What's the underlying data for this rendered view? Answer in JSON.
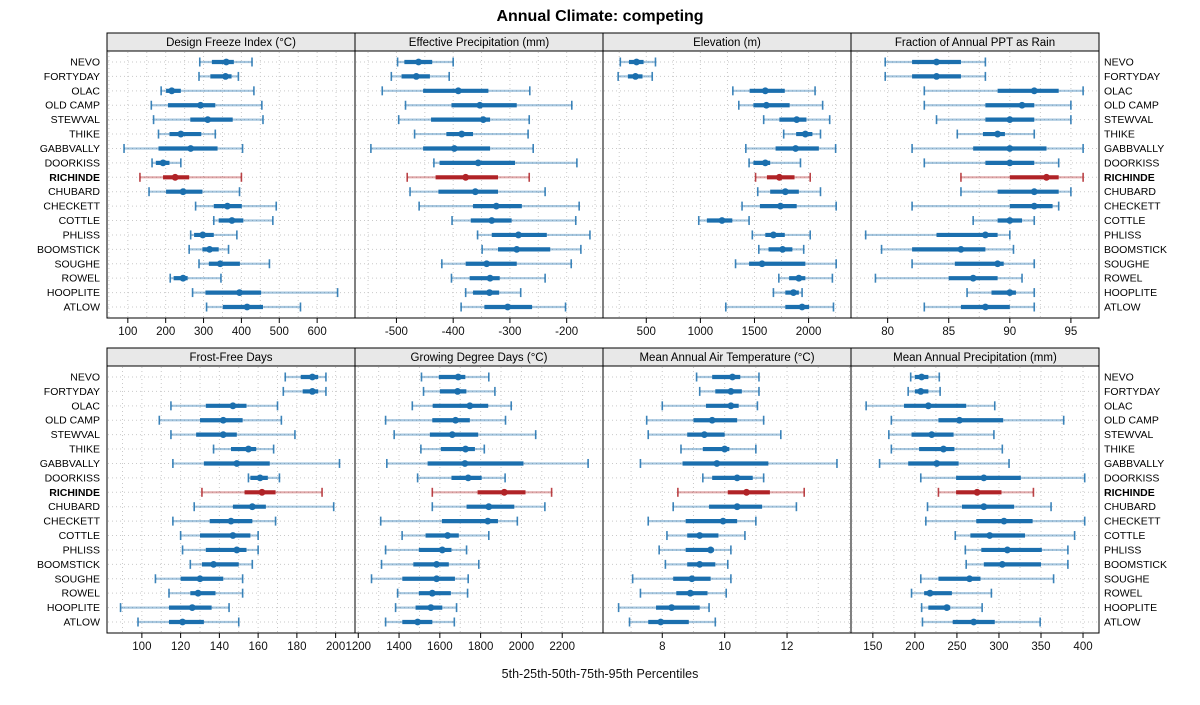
{
  "title": "Annual Climate: competing",
  "caption": "5th-25th-50th-75th-95th Percentiles",
  "colors": {
    "series": "#1b6fae",
    "highlight": "#b02327",
    "grid": "#c9c9c9",
    "header_bg": "#e8e8e8",
    "border": "#000000",
    "axis_text": "#111111"
  },
  "sites": [
    "NEVO",
    "FORTYDAY",
    "OLAC",
    "OLD CAMP",
    "STEWVAL",
    "THIKE",
    "GABBVALLY",
    "DOORKISS",
    "RICHINDE",
    "CHUBARD",
    "CHECKETT",
    "COTTLE",
    "PHLISS",
    "BOOMSTICK",
    "SOUGHE",
    "ROWEL",
    "HOOPLITE",
    "ATLOW"
  ],
  "highlight_site": "RICHINDE",
  "chart_data": {
    "type": "dotplot-percentiles",
    "percentile_labels": [
      "5th",
      "25th",
      "50th",
      "75th",
      "95th"
    ],
    "legend_position": "none",
    "grid": "dotted",
    "panels": [
      {
        "title": "Design Freeze Index (°C)",
        "row": 0,
        "col": 0,
        "domain": [
          45,
          700
        ],
        "ticks": [
          100,
          200,
          300,
          400,
          500,
          600
        ],
        "grid_step": 50,
        "series": [
          [
            290,
            322,
            360,
            380,
            428
          ],
          [
            288,
            318,
            358,
            374,
            392
          ],
          [
            188,
            201,
            216,
            240,
            433
          ],
          [
            162,
            206,
            292,
            331,
            454
          ],
          [
            168,
            265,
            311,
            377,
            457
          ],
          [
            181,
            210,
            240,
            294,
            331
          ],
          [
            90,
            181,
            266,
            337,
            403
          ],
          [
            164,
            174,
            193,
            210,
            240
          ],
          [
            132,
            193,
            225,
            262,
            400
          ],
          [
            156,
            201,
            246,
            297,
            395
          ],
          [
            279,
            327,
            363,
            401,
            492
          ],
          [
            327,
            340,
            375,
            405,
            483
          ],
          [
            266,
            275,
            298,
            327,
            388
          ],
          [
            262,
            297,
            316,
            340,
            366
          ],
          [
            288,
            314,
            344,
            396,
            474
          ],
          [
            212,
            221,
            246,
            258,
            346
          ],
          [
            271,
            305,
            395,
            452,
            654
          ],
          [
            308,
            351,
            415,
            457,
            556
          ]
        ]
      },
      {
        "title": "Effective Precipitation (mm)",
        "row": 0,
        "col": 1,
        "domain": [
          -573,
          -136
        ],
        "ticks": [
          -500,
          -400,
          -300,
          -200
        ],
        "grid_step": 50,
        "series": [
          [
            -498,
            -486,
            -461,
            -437,
            -400
          ],
          [
            -509,
            -491,
            -465,
            -441,
            -407
          ],
          [
            -525,
            -453,
            -391,
            -338,
            -265
          ],
          [
            -484,
            -403,
            -353,
            -288,
            -191
          ],
          [
            -496,
            -439,
            -347,
            -335,
            -266
          ],
          [
            -468,
            -412,
            -385,
            -365,
            -268
          ],
          [
            -545,
            -453,
            -398,
            -335,
            -259
          ],
          [
            -434,
            -424,
            -356,
            -291,
            -182
          ],
          [
            -481,
            -431,
            -378,
            -321,
            -266
          ],
          [
            -476,
            -426,
            -361,
            -321,
            -238
          ],
          [
            -460,
            -365,
            -324,
            -279,
            -178
          ],
          [
            -402,
            -369,
            -332,
            -297,
            -184
          ],
          [
            -357,
            -332,
            -285,
            -235,
            -159
          ],
          [
            -349,
            -321,
            -288,
            -229,
            -175
          ],
          [
            -420,
            -378,
            -341,
            -288,
            -192
          ],
          [
            -403,
            -371,
            -335,
            -318,
            -238
          ],
          [
            -378,
            -365,
            -336,
            -319,
            -281
          ],
          [
            -386,
            -345,
            -304,
            -261,
            -202
          ]
        ]
      },
      {
        "title": "Elevation (m)",
        "row": 0,
        "col": 2,
        "domain": [
          100,
          2392
        ],
        "ticks": [
          500,
          1000,
          1500,
          2000
        ],
        "grid_step": 250,
        "series": [
          [
            260,
            340,
            410,
            475,
            585
          ],
          [
            240,
            330,
            400,
            465,
            555
          ],
          [
            1300,
            1455,
            1600,
            1780,
            2060
          ],
          [
            1355,
            1490,
            1610,
            1825,
            2130
          ],
          [
            1585,
            1730,
            1890,
            1980,
            2195
          ],
          [
            1770,
            1885,
            1970,
            2035,
            2110
          ],
          [
            1420,
            1695,
            1880,
            2095,
            2250
          ],
          [
            1450,
            1490,
            1600,
            1645,
            1925
          ],
          [
            1510,
            1615,
            1730,
            1870,
            2015
          ],
          [
            1530,
            1645,
            1785,
            1910,
            2110
          ],
          [
            1385,
            1550,
            1740,
            1890,
            2255
          ],
          [
            985,
            1060,
            1200,
            1295,
            1450
          ],
          [
            1480,
            1600,
            1675,
            1780,
            2015
          ],
          [
            1540,
            1630,
            1760,
            1850,
            1955
          ],
          [
            1325,
            1450,
            1570,
            1970,
            2255
          ],
          [
            1725,
            1820,
            1910,
            1970,
            2220
          ],
          [
            1675,
            1785,
            1860,
            1910,
            1940
          ],
          [
            1235,
            1785,
            1940,
            2005,
            2230
          ]
        ]
      },
      {
        "title": "Fraction of Annual PPT as Rain",
        "row": 0,
        "col": 3,
        "domain": [
          77,
          97.3
        ],
        "ticks": [
          80,
          85,
          90,
          95
        ],
        "grid_step": 2.5,
        "series": [
          [
            79.8,
            82,
            84,
            86,
            88
          ],
          [
            79.8,
            82,
            84,
            86,
            88
          ],
          [
            83,
            89,
            92,
            94,
            96
          ],
          [
            83,
            88,
            91,
            92,
            95
          ],
          [
            84,
            88,
            90,
            92,
            95
          ],
          [
            85.7,
            87.8,
            89,
            89.6,
            92
          ],
          [
            82,
            87,
            90,
            93,
            96
          ],
          [
            83,
            88,
            90,
            92,
            94
          ],
          [
            86,
            90,
            93,
            94,
            96
          ],
          [
            86,
            89,
            92,
            94,
            95
          ],
          [
            82,
            90,
            92,
            93.5,
            94
          ],
          [
            87,
            89,
            90,
            91,
            92
          ],
          [
            78.2,
            84,
            88,
            89,
            90
          ],
          [
            79.5,
            82,
            86,
            88,
            90.3
          ],
          [
            82,
            85.5,
            89,
            89.5,
            92
          ],
          [
            79,
            85,
            87,
            89,
            91
          ],
          [
            86.5,
            88.5,
            90,
            90.5,
            92
          ],
          [
            83,
            86,
            88,
            90,
            92
          ]
        ]
      },
      {
        "title": "Frost-Free Days",
        "row": 1,
        "col": 0,
        "domain": [
          82,
          210
        ],
        "ticks": [
          100,
          120,
          140,
          160,
          180,
          200
        ],
        "grid_step": 10,
        "series": [
          [
            174,
            182,
            188,
            191,
            195
          ],
          [
            173,
            183,
            188,
            191,
            195
          ],
          [
            115,
            133,
            147,
            154,
            170
          ],
          [
            109,
            130,
            142,
            152,
            172
          ],
          [
            115,
            128,
            142,
            149,
            179
          ],
          [
            137,
            146,
            155,
            159,
            168
          ],
          [
            116,
            132,
            149,
            166,
            202
          ],
          [
            155,
            156,
            161,
            165,
            171
          ],
          [
            131,
            153,
            162,
            169,
            193
          ],
          [
            127,
            147,
            157,
            164,
            199
          ],
          [
            116,
            135,
            146,
            157,
            169
          ],
          [
            120,
            130,
            147,
            156,
            160
          ],
          [
            121,
            133,
            149,
            154,
            160
          ],
          [
            125,
            131,
            137,
            150,
            157
          ],
          [
            107,
            120,
            130,
            142,
            152
          ],
          [
            114,
            125,
            129,
            138,
            152
          ],
          [
            89,
            114,
            126,
            136,
            145
          ],
          [
            98,
            114,
            121,
            132,
            150
          ]
        ]
      },
      {
        "title": "Growing Degree Days (°C)",
        "row": 1,
        "col": 1,
        "domain": [
          1184,
          2400
        ],
        "ticks": [
          1200,
          1400,
          1600,
          1800,
          2000,
          2200
        ],
        "grid_step": 100,
        "series": [
          [
            1510,
            1595,
            1690,
            1725,
            1840
          ],
          [
            1520,
            1600,
            1687,
            1730,
            1870
          ],
          [
            1465,
            1565,
            1747,
            1837,
            1950
          ],
          [
            1334,
            1563,
            1677,
            1747,
            1922
          ],
          [
            1376,
            1551,
            1661,
            1788,
            2070
          ],
          [
            1507,
            1605,
            1726,
            1772,
            1818
          ],
          [
            1340,
            1540,
            1723,
            2010,
            2327
          ],
          [
            1491,
            1657,
            1739,
            1805,
            1920
          ],
          [
            1563,
            1785,
            1916,
            2020,
            2148
          ],
          [
            1563,
            1731,
            1840,
            1965,
            2115
          ],
          [
            1310,
            1610,
            1835,
            1885,
            1980
          ],
          [
            1415,
            1530,
            1638,
            1693,
            1840
          ],
          [
            1334,
            1497,
            1612,
            1657,
            1731
          ],
          [
            1314,
            1470,
            1584,
            1644,
            1791
          ],
          [
            1265,
            1416,
            1584,
            1674,
            1739
          ],
          [
            1393,
            1497,
            1563,
            1654,
            1736
          ],
          [
            1383,
            1481,
            1556,
            1612,
            1682
          ],
          [
            1334,
            1416,
            1491,
            1563,
            1671
          ]
        ]
      },
      {
        "title": "Mean Annual Air Temperature (°C)",
        "row": 1,
        "col": 2,
        "domain": [
          6.1,
          14.05
        ],
        "ticks": [
          8,
          10,
          12
        ],
        "grid_step": 1,
        "series": [
          [
            9.1,
            9.6,
            10.25,
            10.5,
            11.1
          ],
          [
            9.2,
            9.7,
            10.2,
            10.55,
            11.1
          ],
          [
            8.0,
            9.4,
            10.2,
            10.45,
            11.05
          ],
          [
            7.5,
            9.0,
            9.6,
            10.4,
            11.25
          ],
          [
            7.55,
            8.8,
            9.35,
            10.0,
            11.8
          ],
          [
            8.6,
            9.3,
            10.0,
            10.15,
            11.0
          ],
          [
            7.3,
            8.65,
            9.75,
            11.4,
            13.6
          ],
          [
            9.3,
            9.6,
            10.4,
            10.9,
            11.25
          ],
          [
            8.5,
            10.1,
            10.7,
            11.45,
            12.55
          ],
          [
            8.35,
            9.5,
            10.4,
            11.2,
            12.3
          ],
          [
            7.55,
            8.75,
            9.95,
            10.4,
            11.0
          ],
          [
            8.15,
            8.8,
            9.2,
            9.8,
            10.65
          ],
          [
            7.9,
            8.75,
            9.55,
            9.65,
            10.2
          ],
          [
            8.1,
            8.8,
            9.2,
            9.7,
            10.1
          ],
          [
            7.05,
            8.35,
            8.95,
            9.55,
            10.2
          ],
          [
            7.3,
            8.45,
            8.9,
            9.45,
            10.05
          ],
          [
            6.6,
            7.8,
            8.3,
            9.2,
            9.5
          ],
          [
            6.95,
            7.55,
            7.95,
            8.85,
            9.7
          ]
        ]
      },
      {
        "title": "Mean Annual Precipitation (mm)",
        "row": 1,
        "col": 3,
        "domain": [
          124,
          419
        ],
        "ticks": [
          150,
          200,
          250,
          300,
          350,
          400
        ],
        "grid_step": 25,
        "series": [
          [
            195,
            200,
            208,
            216,
            229
          ],
          [
            192,
            200,
            207,
            216,
            230
          ],
          [
            142,
            187,
            216,
            261,
            295
          ],
          [
            172,
            228,
            253,
            305,
            377
          ],
          [
            169,
            196,
            220,
            246,
            294
          ],
          [
            172,
            205,
            234,
            247,
            304
          ],
          [
            158,
            192,
            226,
            252,
            312
          ],
          [
            207,
            249,
            282,
            326,
            402
          ],
          [
            228,
            249,
            274,
            303,
            341
          ],
          [
            215,
            256,
            282,
            318,
            362
          ],
          [
            213,
            273,
            306,
            340,
            402
          ],
          [
            248,
            266,
            289,
            331,
            390
          ],
          [
            260,
            279,
            310,
            351,
            382
          ],
          [
            261,
            282,
            304,
            350,
            382
          ],
          [
            207,
            228,
            265,
            278,
            365
          ],
          [
            196,
            211,
            218,
            244,
            291
          ],
          [
            208,
            216,
            238,
            242,
            280
          ],
          [
            209,
            245,
            270,
            295,
            349
          ]
        ]
      }
    ]
  }
}
